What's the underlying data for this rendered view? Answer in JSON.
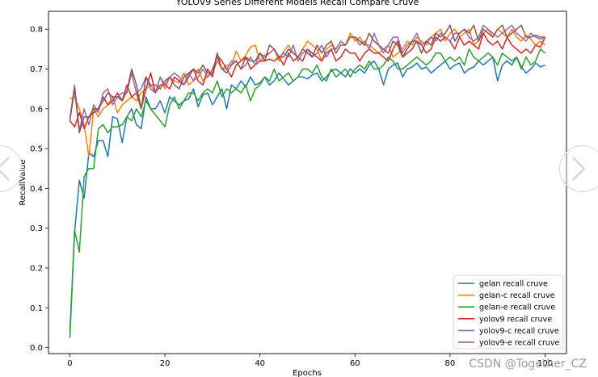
{
  "chart_data": {
    "type": "line",
    "title": "YOLOV9 Series Different Models Recall Compare Cruve",
    "xlabel": "Epochs",
    "ylabel": "RecallValue",
    "xlim": [
      -4.5,
      104.5
    ],
    "ylim": [
      -0.015,
      0.845
    ],
    "xticks": [
      0,
      20,
      40,
      60,
      80,
      100
    ],
    "yticks": [
      0.0,
      0.1,
      0.2,
      0.3,
      0.4,
      0.5,
      0.6,
      0.7,
      0.8
    ],
    "xtick_labels": [
      "0",
      "20",
      "40",
      "60",
      "80",
      "100"
    ],
    "ytick_labels": [
      "0.0",
      "0.1",
      "0.2",
      "0.3",
      "0.4",
      "0.5",
      "0.6",
      "0.7",
      "0.8"
    ],
    "legend_position": "lower right",
    "x": [
      0,
      1,
      2,
      3,
      4,
      5,
      6,
      7,
      8,
      9,
      10,
      11,
      12,
      13,
      14,
      15,
      16,
      17,
      18,
      19,
      20,
      21,
      22,
      23,
      24,
      25,
      26,
      27,
      28,
      29,
      30,
      31,
      32,
      33,
      34,
      35,
      36,
      37,
      38,
      39,
      40,
      41,
      42,
      43,
      44,
      45,
      46,
      47,
      48,
      49,
      50,
      51,
      52,
      53,
      54,
      55,
      56,
      57,
      58,
      59,
      60,
      61,
      62,
      63,
      64,
      65,
      66,
      67,
      68,
      69,
      70,
      71,
      72,
      73,
      74,
      75,
      76,
      77,
      78,
      79,
      80,
      81,
      82,
      83,
      84,
      85,
      86,
      87,
      88,
      89,
      90,
      91,
      92,
      93,
      94,
      95,
      96,
      97,
      98,
      99,
      100
    ],
    "series": [
      {
        "name": "gelan recall cruve",
        "color": "#1f77b4",
        "values": [
          0.025,
          0.29,
          0.42,
          0.375,
          0.49,
          0.48,
          0.52,
          0.52,
          0.48,
          0.58,
          0.575,
          0.515,
          0.58,
          0.6,
          0.56,
          0.55,
          0.63,
          0.6,
          0.6,
          0.62,
          0.59,
          0.63,
          0.62,
          0.61,
          0.62,
          0.625,
          0.65,
          0.605,
          0.635,
          0.64,
          0.61,
          0.63,
          0.65,
          0.6,
          0.66,
          0.65,
          0.67,
          0.655,
          0.68,
          0.66,
          0.665,
          0.68,
          0.66,
          0.67,
          0.69,
          0.675,
          0.66,
          0.67,
          0.68,
          0.68,
          0.675,
          0.685,
          0.69,
          0.67,
          0.68,
          0.695,
          0.7,
          0.69,
          0.68,
          0.7,
          0.69,
          0.7,
          0.69,
          0.71,
          0.72,
          0.7,
          0.66,
          0.7,
          0.71,
          0.715,
          0.68,
          0.7,
          0.705,
          0.715,
          0.7,
          0.705,
          0.69,
          0.7,
          0.71,
          0.72,
          0.7,
          0.71,
          0.715,
          0.69,
          0.7,
          0.705,
          0.72,
          0.71,
          0.72,
          0.73,
          0.67,
          0.71,
          0.72,
          0.71,
          0.73,
          0.705,
          0.69,
          0.7,
          0.715,
          0.705,
          0.71
        ]
      },
      {
        "name": "gelan-c recall cruve",
        "color": "#ff7f0e",
        "values": [
          0.625,
          0.63,
          0.6,
          0.56,
          0.48,
          0.6,
          0.58,
          0.6,
          0.61,
          0.63,
          0.59,
          0.61,
          0.62,
          0.63,
          0.62,
          0.64,
          0.65,
          0.66,
          0.64,
          0.68,
          0.65,
          0.68,
          0.67,
          0.665,
          0.69,
          0.66,
          0.67,
          0.7,
          0.67,
          0.68,
          0.69,
          0.72,
          0.7,
          0.71,
          0.71,
          0.745,
          0.72,
          0.735,
          0.755,
          0.76,
          0.72,
          0.735,
          0.74,
          0.75,
          0.72,
          0.745,
          0.76,
          0.74,
          0.73,
          0.75,
          0.77,
          0.76,
          0.75,
          0.72,
          0.75,
          0.76,
          0.75,
          0.77,
          0.76,
          0.79,
          0.77,
          0.78,
          0.76,
          0.76,
          0.75,
          0.74,
          0.75,
          0.76,
          0.73,
          0.74,
          0.75,
          0.77,
          0.76,
          0.78,
          0.77,
          0.76,
          0.78,
          0.79,
          0.8,
          0.77,
          0.79,
          0.8,
          0.78,
          0.79,
          0.8,
          0.76,
          0.77,
          0.79,
          0.8,
          0.78,
          0.8,
          0.79,
          0.78,
          0.8,
          0.78,
          0.77,
          0.785,
          0.775,
          0.76,
          0.77,
          0.76
        ]
      },
      {
        "name": "gelan-e recall cruve",
        "color": "#2ca02c",
        "values": [
          0.04,
          0.295,
          0.24,
          0.43,
          0.45,
          0.45,
          0.55,
          0.56,
          0.54,
          0.555,
          0.555,
          0.56,
          0.58,
          0.57,
          0.6,
          0.58,
          0.62,
          0.6,
          0.585,
          0.57,
          0.555,
          0.61,
          0.63,
          0.6,
          0.62,
          0.64,
          0.64,
          0.62,
          0.64,
          0.65,
          0.64,
          0.67,
          0.63,
          0.65,
          0.64,
          0.65,
          0.64,
          0.66,
          0.62,
          0.65,
          0.66,
          0.68,
          0.67,
          0.7,
          0.67,
          0.68,
          0.69,
          0.67,
          0.68,
          0.7,
          0.7,
          0.69,
          0.71,
          0.68,
          0.67,
          0.7,
          0.68,
          0.69,
          0.7,
          0.68,
          0.7,
          0.71,
          0.7,
          0.72,
          0.7,
          0.7,
          0.71,
          0.73,
          0.72,
          0.7,
          0.7,
          0.71,
          0.72,
          0.73,
          0.72,
          0.71,
          0.72,
          0.74,
          0.74,
          0.72,
          0.73,
          0.72,
          0.73,
          0.71,
          0.75,
          0.73,
          0.72,
          0.73,
          0.74,
          0.73,
          0.71,
          0.74,
          0.73,
          0.72,
          0.73,
          0.7,
          0.73,
          0.71,
          0.72,
          0.75,
          0.74
        ]
      },
      {
        "name": "yolov9 recall cruve",
        "color": "#d62728",
        "values": [
          0.57,
          0.555,
          0.59,
          0.55,
          0.58,
          0.59,
          0.6,
          0.63,
          0.61,
          0.62,
          0.64,
          0.62,
          0.66,
          0.63,
          0.64,
          0.6,
          0.65,
          0.69,
          0.64,
          0.66,
          0.66,
          0.65,
          0.68,
          0.67,
          0.66,
          0.68,
          0.7,
          0.67,
          0.66,
          0.7,
          0.68,
          0.735,
          0.72,
          0.7,
          0.68,
          0.71,
          0.72,
          0.73,
          0.7,
          0.71,
          0.72,
          0.72,
          0.725,
          0.72,
          0.73,
          0.71,
          0.74,
          0.72,
          0.73,
          0.72,
          0.75,
          0.74,
          0.73,
          0.72,
          0.74,
          0.75,
          0.72,
          0.73,
          0.75,
          0.74,
          0.74,
          0.72,
          0.74,
          0.75,
          0.74,
          0.74,
          0.73,
          0.72,
          0.75,
          0.77,
          0.73,
          0.74,
          0.75,
          0.77,
          0.76,
          0.74,
          0.75,
          0.78,
          0.77,
          0.78,
          0.77,
          0.75,
          0.78,
          0.76,
          0.77,
          0.76,
          0.75,
          0.79,
          0.77,
          0.76,
          0.77,
          0.75,
          0.78,
          0.76,
          0.75,
          0.74,
          0.75,
          0.74,
          0.76,
          0.755,
          0.78
        ]
      },
      {
        "name": "yolov9-c recall cruve",
        "color": "#9467bd",
        "values": [
          0.575,
          0.66,
          0.545,
          0.6,
          0.56,
          0.61,
          0.59,
          0.64,
          0.65,
          0.61,
          0.63,
          0.64,
          0.64,
          0.69,
          0.64,
          0.65,
          0.68,
          0.65,
          0.64,
          0.68,
          0.66,
          0.68,
          0.69,
          0.68,
          0.66,
          0.69,
          0.67,
          0.68,
          0.7,
          0.68,
          0.7,
          0.73,
          0.7,
          0.7,
          0.72,
          0.72,
          0.7,
          0.71,
          0.73,
          0.71,
          0.74,
          0.73,
          0.74,
          0.75,
          0.73,
          0.74,
          0.73,
          0.76,
          0.72,
          0.74,
          0.75,
          0.73,
          0.74,
          0.76,
          0.73,
          0.75,
          0.75,
          0.77,
          0.76,
          0.78,
          0.78,
          0.76,
          0.77,
          0.75,
          0.79,
          0.76,
          0.74,
          0.76,
          0.78,
          0.78,
          0.74,
          0.76,
          0.77,
          0.79,
          0.76,
          0.77,
          0.78,
          0.77,
          0.79,
          0.78,
          0.77,
          0.79,
          0.79,
          0.8,
          0.78,
          0.77,
          0.78,
          0.81,
          0.8,
          0.79,
          0.78,
          0.79,
          0.8,
          0.81,
          0.79,
          0.78,
          0.77,
          0.79,
          0.78,
          0.775,
          0.78
        ]
      },
      {
        "name": "yolov9-e recall cruve",
        "color": "#8c564b",
        "values": [
          0.57,
          0.65,
          0.54,
          0.58,
          0.58,
          0.6,
          0.6,
          0.62,
          0.64,
          0.63,
          0.63,
          0.62,
          0.645,
          0.7,
          0.66,
          0.6,
          0.68,
          0.66,
          0.66,
          0.65,
          0.67,
          0.68,
          0.66,
          0.65,
          0.68,
          0.69,
          0.7,
          0.69,
          0.71,
          0.69,
          0.69,
          0.74,
          0.7,
          0.69,
          0.71,
          0.72,
          0.7,
          0.73,
          0.72,
          0.72,
          0.74,
          0.72,
          0.76,
          0.75,
          0.73,
          0.73,
          0.75,
          0.74,
          0.73,
          0.75,
          0.74,
          0.73,
          0.76,
          0.74,
          0.76,
          0.77,
          0.74,
          0.76,
          0.76,
          0.78,
          0.78,
          0.77,
          0.76,
          0.79,
          0.77,
          0.76,
          0.75,
          0.74,
          0.77,
          0.76,
          0.73,
          0.75,
          0.77,
          0.77,
          0.74,
          0.77,
          0.76,
          0.79,
          0.78,
          0.79,
          0.81,
          0.77,
          0.79,
          0.8,
          0.79,
          0.81,
          0.77,
          0.8,
          0.79,
          0.78,
          0.8,
          0.81,
          0.78,
          0.79,
          0.8,
          0.81,
          0.78,
          0.78,
          0.785,
          0.78,
          0.78
        ]
      }
    ]
  },
  "watermark": "CSDN @Together_CZ",
  "colors": {
    "background": "#ffffff",
    "axis": "#000000"
  }
}
